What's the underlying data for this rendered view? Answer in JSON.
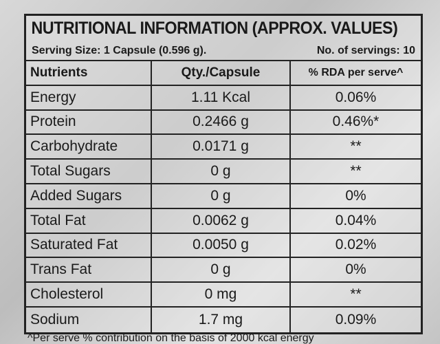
{
  "header": {
    "title": "NUTRITIONAL INFORMATION (APPROX. VALUES)",
    "serving_size": "Serving Size: 1 Capsule (0.596 g).",
    "servings": "No. of servings: 10"
  },
  "table": {
    "columns": [
      "Nutrients",
      "Qty./Capsule",
      "% RDA per serve^"
    ],
    "rows": [
      [
        "Energy",
        "1.11 Kcal",
        "0.06%"
      ],
      [
        "Protein",
        "0.2466 g",
        "0.46%*"
      ],
      [
        "Carbohydrate",
        "0.0171 g",
        "**"
      ],
      [
        "Total Sugars",
        "0 g",
        "**"
      ],
      [
        "Added Sugars",
        "0 g",
        "0%"
      ],
      [
        "Total Fat",
        "0.0062 g",
        "0.04%"
      ],
      [
        "Saturated Fat",
        "0.0050 g",
        "0.02%"
      ],
      [
        "Trans Fat",
        "0 g",
        "0%"
      ],
      [
        "Cholesterol",
        "0 mg",
        "**"
      ],
      [
        "Sodium",
        "1.7 mg",
        "0.09%"
      ]
    ]
  },
  "footer": {
    "note": "^Per serve % contribution on the basis of 2000 kcal energy"
  }
}
